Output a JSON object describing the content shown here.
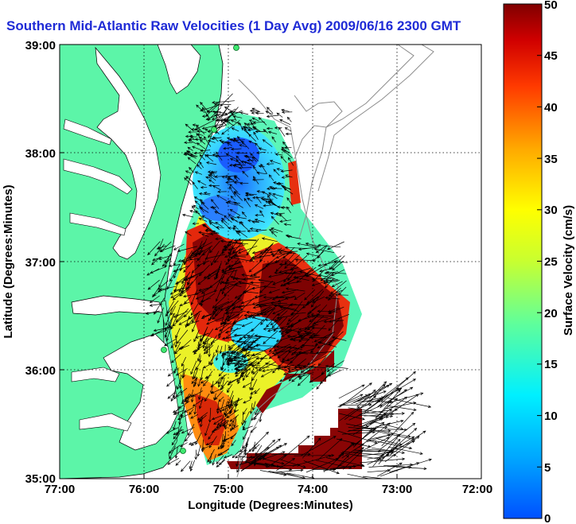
{
  "title": "Southern Mid-Atlantic Raw Velocities (1 Day Avg) 2009/06/16 2300 GMT",
  "map": {
    "xlabel": "Longitude (Degrees:Minutes)",
    "ylabel": "Latitude (Degrees:Minutes)",
    "x_ticks": [
      "77:00",
      "76:00",
      "75:00",
      "74:00",
      "73:00",
      "72:00"
    ],
    "y_ticks": [
      "39:00",
      "38:00",
      "37:00",
      "36:00",
      "35:00"
    ],
    "lon_range": [
      -77,
      -72
    ],
    "lat_range": [
      35,
      39
    ],
    "grid": "dotted",
    "land_color": "#5cf5a8",
    "contour_color": "#8c8c8c"
  },
  "colorbar": {
    "label": "Surface Velocity (cm/s)",
    "range": [
      0,
      50
    ],
    "ticks": [
      "50",
      "45",
      "40",
      "35",
      "30",
      "25",
      "20",
      "15",
      "10",
      "5",
      "0"
    ],
    "colormap": "jet"
  }
}
